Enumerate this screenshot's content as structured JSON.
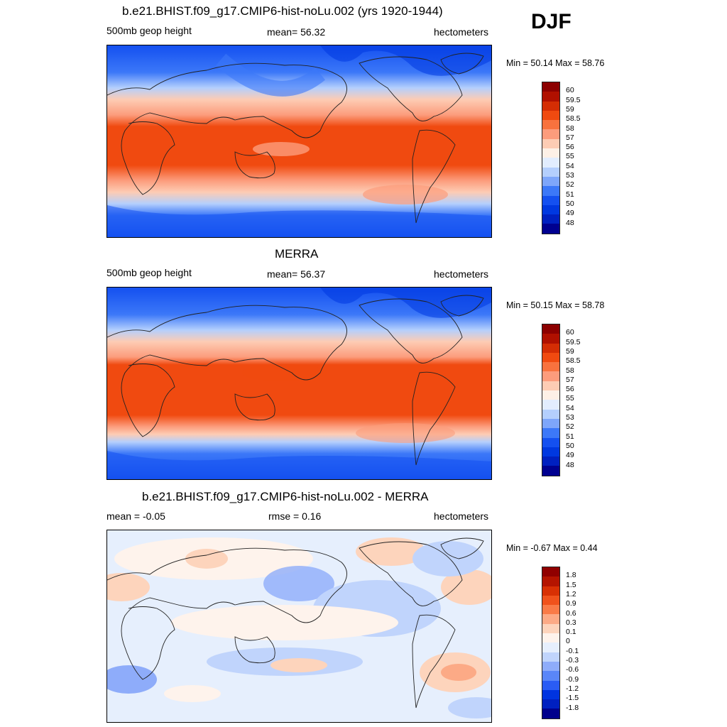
{
  "season": "DJF",
  "colors": {
    "abs": [
      "#000090",
      "#0020c0",
      "#0038e0",
      "#1450f0",
      "#3c78f8",
      "#7ea6fa",
      "#b4cffd",
      "#e2edfe",
      "#fdf0e6",
      "#fdccb4",
      "#fc9c7c",
      "#f8723e",
      "#f04a10",
      "#d42d04",
      "#b01000",
      "#8c0000"
    ],
    "diff": [
      "#00008c",
      "#0020c0",
      "#0034e0",
      "#2a5cf4",
      "#5a86f8",
      "#8eacfa",
      "#c0d4fc",
      "#e6effd",
      "#fef3ec",
      "#fdd4bc",
      "#fcaa86",
      "#f97b48",
      "#f0521c",
      "#d83004",
      "#b41400",
      "#900000"
    ]
  },
  "panels": [
    {
      "title": "b.e21.BHIST.f09_g17.CMIP6-hist-noLu.002 (yrs 1920-1944)",
      "left_label": "500mb geop height",
      "center_label": "mean=  56.32",
      "right_label": "hectometers",
      "minmax": "Min =  50.14 Max =  58.76",
      "legend": [
        "60",
        "59.5",
        "59",
        "58.5",
        "58",
        "57",
        "56",
        "55",
        "54",
        "53",
        "52",
        "51",
        "50",
        "49",
        "48"
      ]
    },
    {
      "title": "MERRA",
      "left_label": "500mb geop height",
      "center_label": "mean=  56.37",
      "right_label": "hectometers",
      "minmax": "Min =  50.15 Max =  58.78",
      "legend": [
        "60",
        "59.5",
        "59",
        "58.5",
        "58",
        "57",
        "56",
        "55",
        "54",
        "53",
        "52",
        "51",
        "50",
        "49",
        "48"
      ]
    },
    {
      "title": "b.e21.BHIST.f09_g17.CMIP6-hist-noLu.002 - MERRA",
      "left_label": "mean =  -0.05",
      "center_label": "rmse =   0.16",
      "right_label": "hectometers",
      "minmax": "Min =  -0.67 Max =   0.44",
      "legend": [
        "1.8",
        "1.5",
        "1.2",
        "0.9",
        "0.6",
        "0.3",
        "0.1",
        "0",
        "-0.1",
        "-0.3",
        "-0.6",
        "-0.9",
        "-1.2",
        "-1.5",
        "-1.8"
      ]
    }
  ]
}
